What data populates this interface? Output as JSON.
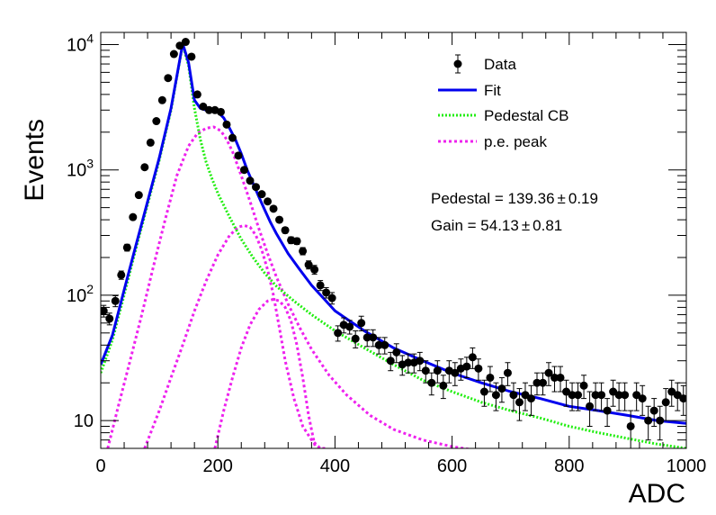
{
  "chart_data": {
    "type": "scatter",
    "xlabel": "ADC",
    "ylabel": "Events",
    "xlim": [
      0,
      1000
    ],
    "ylim": [
      6,
      12500
    ],
    "log_y": true,
    "grid": false,
    "legend_placement": "top-right",
    "x_ticks": [
      {
        "v": 0,
        "label": "0"
      },
      {
        "v": 200,
        "label": "200"
      },
      {
        "v": 400,
        "label": "400"
      },
      {
        "v": 600,
        "label": "600"
      },
      {
        "v": 800,
        "label": "800"
      },
      {
        "v": 1000,
        "label": "1000"
      }
    ],
    "y_ticks": [
      {
        "v": 10,
        "base": "10",
        "exp": ""
      },
      {
        "v": 100,
        "base": "10",
        "exp": "2"
      },
      {
        "v": 1000,
        "base": "10",
        "exp": "3"
      },
      {
        "v": 10000,
        "base": "10",
        "exp": "4"
      }
    ],
    "legend": [
      {
        "label": "Data",
        "kind": "marker"
      },
      {
        "label": "Fit",
        "kind": "solid"
      },
      {
        "label": "Pedestal CB",
        "kind": "dotted-green"
      },
      {
        "label": "p.e. peak",
        "kind": "dotted-magenta"
      }
    ],
    "annotations": [
      {
        "name": "pedestal",
        "text": "Pedestal = 139.36",
        "pm": "±",
        "err": "0.19"
      },
      {
        "name": "gain",
        "text": "Gain = 54.13",
        "pm": "±",
        "err": "0.81"
      }
    ],
    "colors": {
      "data": "#000000",
      "fit": "#0000ee",
      "pedestal": "#22ee11",
      "pe": "#ee22ee"
    },
    "series": [
      {
        "name": "Data",
        "kind": "points",
        "x": [
          5,
          15,
          25,
          35,
          45,
          55,
          65,
          75,
          85,
          95,
          105,
          115,
          125,
          135,
          145,
          155,
          165,
          175,
          185,
          195,
          205,
          215,
          225,
          235,
          245,
          255,
          265,
          275,
          285,
          295,
          305,
          315,
          325,
          335,
          345,
          355,
          365,
          375,
          385,
          395,
          405,
          415,
          425,
          435,
          445,
          455,
          465,
          475,
          485,
          495,
          505,
          515,
          525,
          535,
          545,
          555,
          565,
          575,
          585,
          595,
          605,
          615,
          625,
          635,
          645,
          655,
          665,
          675,
          685,
          695,
          705,
          715,
          725,
          735,
          745,
          755,
          765,
          775,
          785,
          795,
          805,
          815,
          825,
          835,
          845,
          855,
          865,
          875,
          885,
          895,
          905,
          915,
          925,
          935,
          945,
          955,
          965,
          975,
          985,
          995
        ],
        "y": [
          75,
          65,
          90,
          145,
          240,
          420,
          630,
          1050,
          1650,
          2450,
          3600,
          5400,
          8400,
          9800,
          10500,
          8000,
          4000,
          3200,
          3000,
          3000,
          2900,
          2300,
          1800,
          1300,
          1000,
          820,
          730,
          640,
          560,
          490,
          400,
          330,
          275,
          270,
          225,
          175,
          160,
          120,
          105,
          95,
          50,
          58,
          56,
          45,
          60,
          46,
          46,
          40,
          40,
          30,
          35,
          28,
          29,
          29,
          30,
          25,
          20,
          25,
          19,
          25,
          24,
          26,
          27,
          32,
          26,
          17,
          22,
          16,
          18,
          24,
          16,
          14,
          16,
          15,
          20,
          20,
          24,
          22,
          22,
          17,
          16,
          16,
          19,
          13,
          16,
          16,
          12,
          17,
          16,
          16,
          9,
          16,
          15,
          10,
          12,
          10,
          14,
          17,
          16,
          15
        ],
        "err": [
          8,
          7,
          9,
          11,
          15,
          20,
          25,
          32,
          40,
          49,
          60,
          73,
          91,
          99,
          102,
          89,
          63,
          56,
          55,
          55,
          54,
          48,
          42,
          36,
          32,
          29,
          27,
          25,
          24,
          22,
          20,
          18,
          17,
          16,
          15,
          13,
          13,
          11,
          10,
          10,
          7,
          8,
          7,
          7,
          8,
          7,
          7,
          6,
          6,
          5,
          6,
          5,
          5,
          5,
          5,
          5,
          4,
          5,
          4,
          5,
          5,
          5,
          5,
          6,
          5,
          4,
          5,
          4,
          4,
          5,
          4,
          4,
          4,
          4,
          4,
          4,
          5,
          5,
          5,
          4,
          4,
          4,
          4,
          4,
          4,
          4,
          3,
          4,
          4,
          4,
          3,
          4,
          4,
          3,
          3,
          3,
          4,
          4,
          4,
          4
        ]
      },
      {
        "name": "Fit",
        "kind": "curve",
        "x": [
          0,
          20,
          40,
          60,
          80,
          100,
          120,
          130,
          140,
          150,
          160,
          170,
          180,
          190,
          200,
          210,
          220,
          230,
          240,
          250,
          260,
          270,
          280,
          290,
          300,
          320,
          340,
          360,
          380,
          400,
          450,
          500,
          550,
          600,
          650,
          700,
          750,
          800,
          850,
          900,
          950,
          1000
        ],
        "y": [
          28,
          48,
          110,
          250,
          560,
          1250,
          3100,
          5600,
          10200,
          7200,
          3600,
          3100,
          3000,
          2950,
          2900,
          2600,
          2150,
          1750,
          1350,
          1000,
          780,
          610,
          480,
          380,
          310,
          215,
          160,
          120,
          95,
          75,
          52,
          38,
          30,
          24,
          20,
          17,
          15,
          13,
          12,
          11,
          10,
          9.5
        ]
      },
      {
        "name": "Pedestal CB",
        "kind": "curve",
        "x": [
          0,
          20,
          40,
          60,
          80,
          100,
          120,
          130,
          140,
          150,
          160,
          170,
          180,
          190,
          200,
          220,
          240,
          260,
          280,
          300,
          330,
          360,
          400,
          450,
          500,
          550,
          600,
          650,
          700,
          750,
          800,
          850,
          900,
          950,
          1000
        ],
        "y": [
          24,
          44,
          100,
          235,
          530,
          1200,
          3000,
          5500,
          10000,
          6800,
          3100,
          1750,
          1150,
          850,
          650,
          420,
          280,
          200,
          150,
          118,
          90,
          70,
          52,
          38,
          28,
          21,
          17,
          14,
          12,
          10.5,
          9,
          8,
          7.2,
          6.5,
          6
        ]
      },
      {
        "name": "p.e. peak 1",
        "kind": "curve",
        "x": [
          12,
          30,
          50,
          70,
          90,
          110,
          130,
          150,
          165,
          180,
          193,
          205,
          215,
          225,
          240,
          255,
          270,
          285,
          300,
          320,
          340,
          360,
          390,
          420,
          460,
          500,
          550,
          600,
          640,
          680,
          720,
          760
        ],
        "y": [
          6,
          13,
          30,
          70,
          170,
          400,
          900,
          1550,
          1950,
          2150,
          2200,
          2050,
          1750,
          1400,
          900,
          560,
          340,
          215,
          140,
          85,
          55,
          37,
          23,
          16,
          11,
          8.5,
          7,
          6.2,
          5.8,
          5.5,
          5.2,
          5
        ]
      },
      {
        "name": "p.e. peak 2",
        "kind": "curve",
        "x": [
          75,
          100,
          120,
          140,
          160,
          180,
          200,
          220,
          235,
          245,
          255,
          265,
          275,
          285,
          295,
          305,
          315,
          330,
          345,
          360,
          375,
          385
        ],
        "y": [
          6,
          12,
          22,
          40,
          75,
          130,
          210,
          300,
          350,
          360,
          350,
          300,
          230,
          160,
          100,
          55,
          30,
          15,
          9,
          7,
          6,
          6
        ]
      },
      {
        "name": "p.e. peak 3",
        "kind": "curve",
        "x": [
          195,
          210,
          225,
          240,
          255,
          270,
          285,
          295,
          305,
          315,
          325,
          335,
          345,
          355,
          365,
          375
        ],
        "y": [
          6,
          12,
          22,
          38,
          58,
          77,
          90,
          93,
          90,
          80,
          62,
          40,
          22,
          11,
          6.5,
          5
        ]
      }
    ]
  }
}
